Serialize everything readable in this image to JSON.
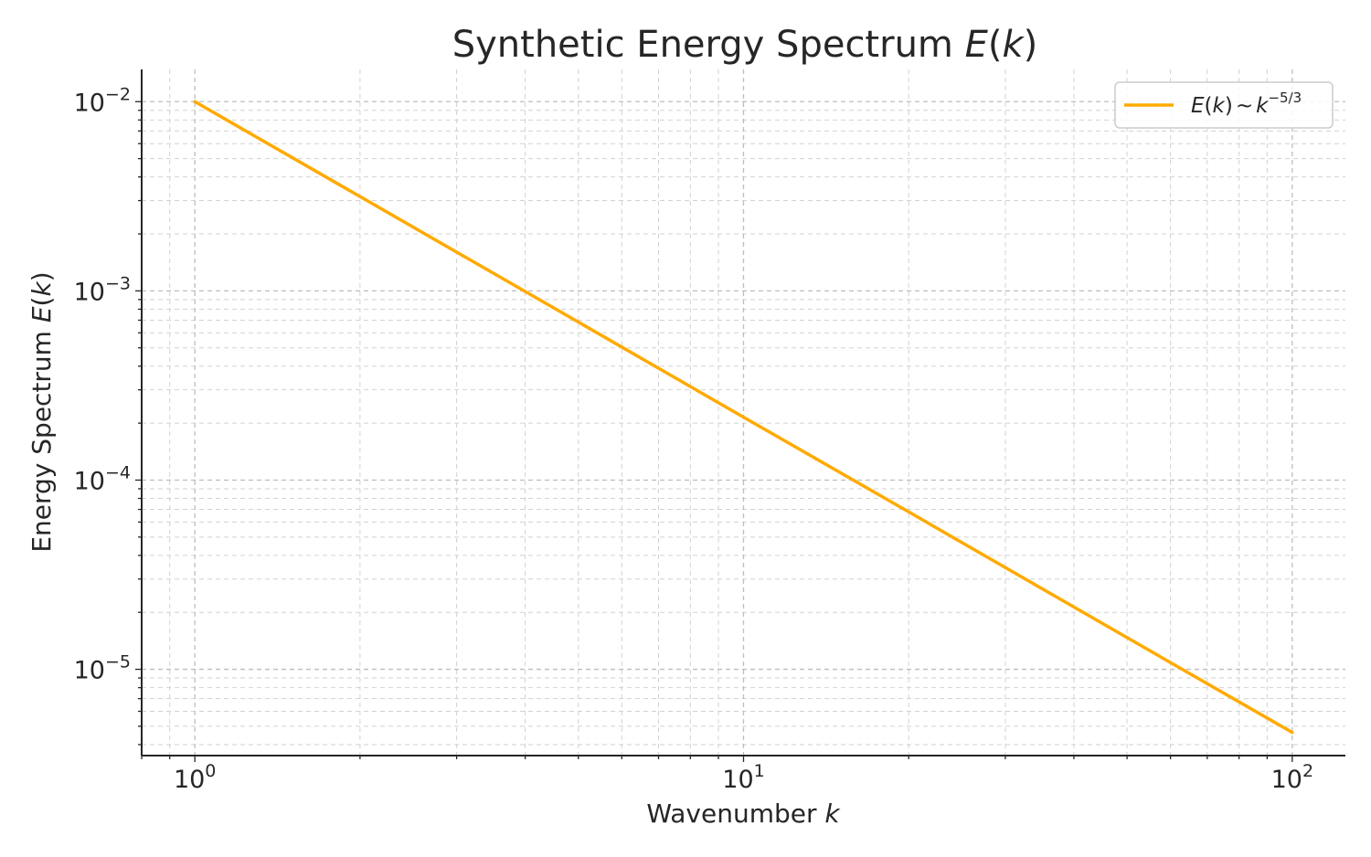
{
  "chart_data": {
    "type": "line",
    "title_text": "Synthetic Energy Spectrum ",
    "title_symbol": "E",
    "title_paren_open": "(",
    "title_var": "k",
    "title_paren_close": ")",
    "xlabel_text": "Wavenumber ",
    "xlabel_var": "k",
    "ylabel_text": "Energy Spectrum ",
    "ylabel_symbol": "E",
    "ylabel_paren_open": "(",
    "ylabel_var": "k",
    "ylabel_paren_close": ")",
    "x_scale": "log",
    "y_scale": "log",
    "xlim": [
      0.8,
      125
    ],
    "ylim": [
      3.5e-06,
      0.0148
    ],
    "x_ticks": [
      {
        "value": 1,
        "base": "10",
        "exp": "0"
      },
      {
        "value": 10,
        "base": "10",
        "exp": "1"
      },
      {
        "value": 100,
        "base": "10",
        "exp": "2"
      }
    ],
    "y_ticks": [
      {
        "value": 0.01,
        "base": "10",
        "exp": "−2"
      },
      {
        "value": 0.001,
        "base": "10",
        "exp": "−3"
      },
      {
        "value": 0.0001,
        "base": "10",
        "exp": "−4"
      },
      {
        "value": 1e-05,
        "base": "10",
        "exp": "−5"
      }
    ],
    "grid": true,
    "legend_position": "top-right",
    "series": [
      {
        "legend_E": "E",
        "legend_paren_open": "(",
        "legend_k": "k",
        "legend_paren_close": ")",
        "legend_sim": "∼",
        "legend_base": "k",
        "legend_exp": "−5/3",
        "color": "#ffaa00",
        "x": [
          1,
          2,
          5,
          10,
          20,
          50,
          100
        ],
        "y": [
          0.01,
          0.00315,
          0.000684,
          0.000215,
          6.79e-05,
          1.47e-05,
          4.64e-06
        ]
      }
    ]
  }
}
